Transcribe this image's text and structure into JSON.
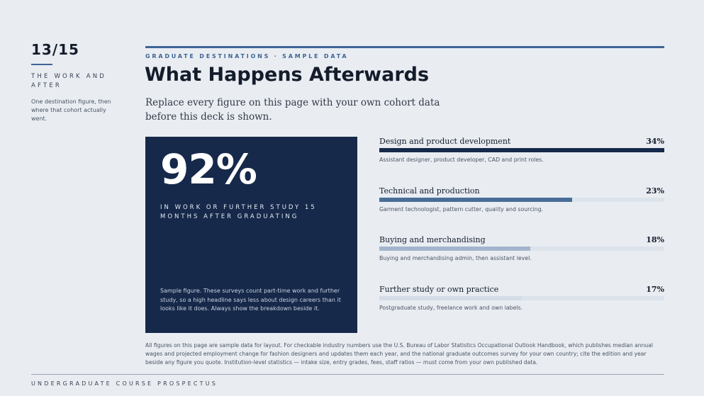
{
  "page": {
    "number": "13/15",
    "section_title": "THE WORK AND AFTER",
    "section_note": "One destination figure, then where that cohort actually went."
  },
  "header": {
    "eyebrow": "GRADUATE DESTINATIONS · SAMPLE DATA",
    "title": "What Happens Afterwards",
    "subtitle": "Replace every figure on this page with your own cohort data before this deck is shown."
  },
  "stat": {
    "value": "92%",
    "label": "IN WORK OR FURTHER STUDY 15 MONTHS AFTER GRADUATING",
    "note": "Sample figure. These surveys count part-time work and further study, so a high headline says less about design careers than it looks like it does. Always show the breakdown beside it."
  },
  "breakdown": [
    {
      "label": "Design and product development",
      "value_text": "34%",
      "share": 0.34,
      "color": "#16294a",
      "description": "Assistant designer, product developer, CAD and print roles."
    },
    {
      "label": "Technical and production",
      "value_text": "23%",
      "share": 0.23,
      "color": "#4a6d97",
      "description": "Garment technologist, pattern cutter, quality and sourcing."
    },
    {
      "label": "Buying and merchandising",
      "value_text": "18%",
      "share": 0.18,
      "color": "#a3b5cc",
      "description": "Buying and merchandising admin, then assistant level."
    },
    {
      "label": "Further study or own practice",
      "value_text": "17%",
      "share": 0.17,
      "color": "#d3dce7",
      "description": "Postgraduate study, freelance work and own labels."
    }
  ],
  "footnote": "All figures on this page are sample data for layout. For checkable industry numbers use the U.S. Bureau of Labor Statistics Occupational Outlook Handbook, which publishes median annual wages and projected employment change for fashion designers and updates them each year, and the national graduate outcomes survey for your own country; cite the edition and year beside any figure you quote. Institution-level statistics — intake size, entry grades, fees, staff ratios — must come from your own published data.",
  "footer": {
    "course_label": "UNDERGRADUATE COURSE PROSPECTUS"
  },
  "colors": {
    "accent": "#3f6595",
    "card": "#16294a",
    "background": "#e9edf2"
  }
}
